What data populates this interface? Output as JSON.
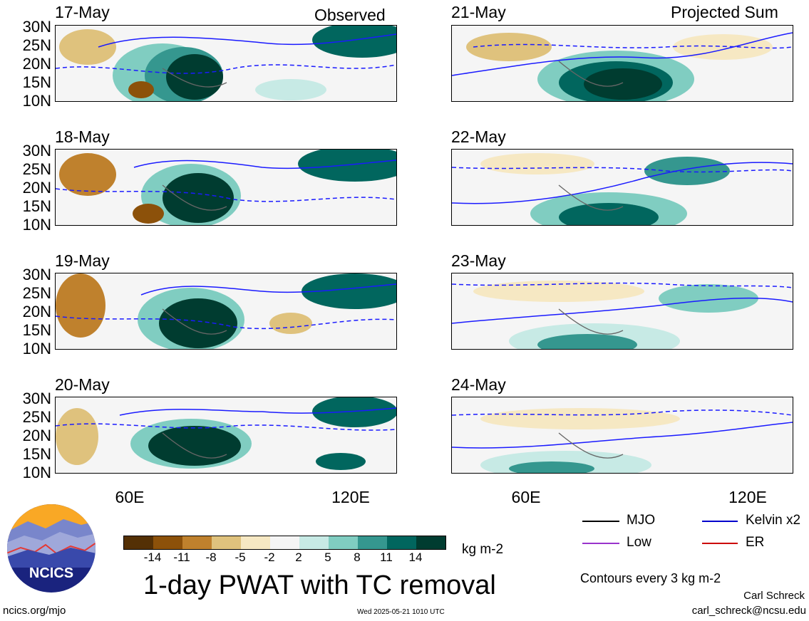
{
  "header": {
    "left_label": "Observed",
    "right_label": "Projected Sum"
  },
  "panels": [
    {
      "date": "17-May",
      "column": "left"
    },
    {
      "date": "18-May",
      "column": "left"
    },
    {
      "date": "19-May",
      "column": "left"
    },
    {
      "date": "20-May",
      "column": "left"
    },
    {
      "date": "21-May",
      "column": "right"
    },
    {
      "date": "22-May",
      "column": "right"
    },
    {
      "date": "23-May",
      "column": "right"
    },
    {
      "date": "24-May",
      "column": "right"
    }
  ],
  "lat_labels": [
    "30N",
    "25N",
    "20N",
    "15N",
    "10N"
  ],
  "lon_labels": [
    "60E",
    "120E"
  ],
  "legend": {
    "items": [
      {
        "label": "MJO",
        "color": "#000000"
      },
      {
        "label": "Kelvin x2",
        "color": "#0000cc"
      },
      {
        "label": "Low",
        "color": "#9933cc"
      },
      {
        "label": "ER",
        "color": "#cc0000"
      }
    ],
    "contour_note": "Contours every 3 kg m-2"
  },
  "colorbar": {
    "ticks": [
      "-14",
      "-11",
      "-8",
      "-5",
      "-2",
      "2",
      "5",
      "8",
      "11",
      "14"
    ],
    "colors": [
      "#543005",
      "#8c510a",
      "#bf812d",
      "#dfc27d",
      "#f6e8c3",
      "#f5f5f5",
      "#c7eae5",
      "#80cdc1",
      "#35978f",
      "#01665e",
      "#003c30"
    ],
    "units": "kg m-2"
  },
  "title": "1-day PWAT with TC removal",
  "footer": {
    "logo_text": "NCICS",
    "url": "ncics.org/mjo",
    "timestamp": "Wed 2025-05-21 1010 UTC",
    "author": "Carl Schreck",
    "email": "carl_schreck@ncsu.edu"
  }
}
